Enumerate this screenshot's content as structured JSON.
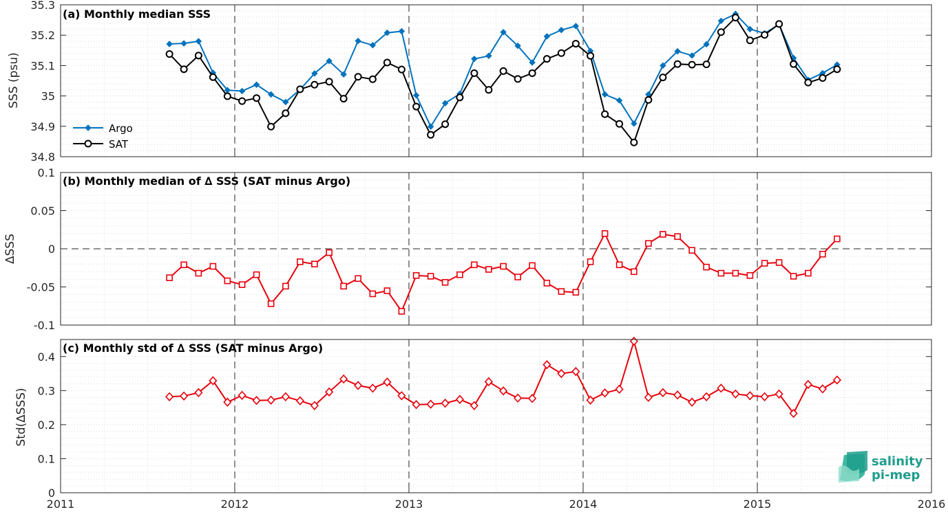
{
  "x_ticks": [
    "2011",
    "2012",
    "2013",
    "2014",
    "2015",
    "2016"
  ],
  "logo": {
    "line1": "salinity",
    "line2": "pi-mep"
  },
  "colors": {
    "argo": "#0072BD",
    "sat": "#000000",
    "delta": "#E8000B",
    "grid": "#d9d9d9"
  },
  "chart_data": [
    {
      "type": "line",
      "title": "(a) Monthly median SSS",
      "ylabel": "SSS (psu)",
      "xlim": [
        2011,
        2016
      ],
      "ylim": [
        34.8,
        35.3
      ],
      "yticks": [
        34.8,
        34.9,
        35,
        35.1,
        35.2,
        35.3
      ],
      "ytick_labels": [
        "34.8",
        "34.9",
        "35",
        "35.1",
        "35.2",
        "35.3"
      ],
      "legend": "left",
      "x": [
        2011.625,
        2011.708,
        2011.792,
        2011.875,
        2011.958,
        2012.042,
        2012.125,
        2012.208,
        2012.292,
        2012.375,
        2012.458,
        2012.542,
        2012.625,
        2012.708,
        2012.792,
        2012.875,
        2012.958,
        2013.042,
        2013.125,
        2013.208,
        2013.292,
        2013.375,
        2013.458,
        2013.542,
        2013.625,
        2013.708,
        2013.792,
        2013.875,
        2013.958,
        2014.042,
        2014.125,
        2014.208,
        2014.292,
        2014.375,
        2014.458,
        2014.542,
        2014.625,
        2014.708,
        2014.792,
        2014.875,
        2014.958,
        2015.042,
        2015.125,
        2015.208,
        2015.292,
        2015.375,
        2015.458
      ],
      "series": [
        {
          "name": "Argo",
          "color": "#0072BD",
          "marker": "diamond-filled",
          "values": [
            35.171,
            35.173,
            35.18,
            35.076,
            35.019,
            35.016,
            35.037,
            35.005,
            34.98,
            35.021,
            35.074,
            35.115,
            35.071,
            35.181,
            35.167,
            35.208,
            35.213,
            35.002,
            34.899,
            34.976,
            35.007,
            35.122,
            35.132,
            35.21,
            35.165,
            35.11,
            35.196,
            35.217,
            35.23,
            35.148,
            35.005,
            34.985,
            34.909,
            35.005,
            35.1,
            35.147,
            35.133,
            35.17,
            35.247,
            35.27,
            35.22,
            35.206,
            35.235,
            35.125,
            35.053,
            35.075,
            35.103
          ]
        },
        {
          "name": "SAT",
          "color": "#000000",
          "marker": "circle-open",
          "values": [
            35.138,
            35.088,
            35.133,
            35.062,
            34.999,
            34.983,
            34.993,
            34.899,
            34.943,
            35.022,
            35.037,
            35.047,
            34.991,
            35.063,
            35.055,
            35.11,
            35.087,
            34.965,
            34.872,
            34.907,
            34.995,
            35.075,
            35.02,
            35.082,
            35.056,
            35.075,
            35.122,
            35.141,
            35.172,
            35.132,
            34.94,
            34.908,
            34.847,
            34.987,
            35.061,
            35.105,
            35.103,
            35.104,
            35.21,
            35.258,
            35.183,
            35.201,
            35.237,
            35.105,
            35.044,
            35.059,
            35.088
          ]
        }
      ]
    },
    {
      "type": "line",
      "title": "(b) Monthly median of ∆ SSS (SAT minus Argo)",
      "ylabel": "∆SSS",
      "xlim": [
        2011,
        2016
      ],
      "ylim": [
        -0.1,
        0.1
      ],
      "yticks": [
        -0.1,
        -0.05,
        0,
        0.05,
        0.1
      ],
      "ytick_labels": [
        "-0.1",
        "-0.05",
        "0",
        "0.05",
        "0.1"
      ],
      "zero_line": true,
      "x": [
        2011.625,
        2011.708,
        2011.792,
        2011.875,
        2011.958,
        2012.042,
        2012.125,
        2012.208,
        2012.292,
        2012.375,
        2012.458,
        2012.542,
        2012.625,
        2012.708,
        2012.792,
        2012.875,
        2012.958,
        2013.042,
        2013.125,
        2013.208,
        2013.292,
        2013.375,
        2013.458,
        2013.542,
        2013.625,
        2013.708,
        2013.792,
        2013.875,
        2013.958,
        2014.042,
        2014.125,
        2014.208,
        2014.292,
        2014.375,
        2014.458,
        2014.542,
        2014.625,
        2014.708,
        2014.792,
        2014.875,
        2014.958,
        2015.042,
        2015.125,
        2015.208,
        2015.292,
        2015.375,
        2015.458
      ],
      "series": [
        {
          "name": "",
          "color": "#E8000B",
          "marker": "square-open",
          "values": [
            -0.038,
            -0.021,
            -0.032,
            -0.023,
            -0.042,
            -0.047,
            -0.034,
            -0.072,
            -0.049,
            -0.017,
            -0.02,
            -0.005,
            -0.049,
            -0.039,
            -0.059,
            -0.055,
            -0.082,
            -0.035,
            -0.036,
            -0.044,
            -0.034,
            -0.021,
            -0.027,
            -0.023,
            -0.037,
            -0.022,
            -0.045,
            -0.056,
            -0.057,
            -0.017,
            0.02,
            -0.021,
            -0.03,
            0.007,
            0.019,
            0.016,
            -0.002,
            -0.024,
            -0.032,
            -0.032,
            -0.035,
            -0.019,
            -0.018,
            -0.036,
            -0.032,
            -0.007,
            0.013
          ]
        }
      ]
    },
    {
      "type": "line",
      "title": "(c) Monthly std of ∆ SSS (SAT minus Argo)",
      "ylabel": "Std(∆SSS)",
      "xlim": [
        2011,
        2016
      ],
      "ylim": [
        0,
        0.45
      ],
      "yticks": [
        0,
        0.1,
        0.2,
        0.3,
        0.4
      ],
      "ytick_labels": [
        "0",
        "0.1",
        "0.2",
        "0.3",
        "0.4"
      ],
      "x": [
        2011.625,
        2011.708,
        2011.792,
        2011.875,
        2011.958,
        2012.042,
        2012.125,
        2012.208,
        2012.292,
        2012.375,
        2012.458,
        2012.542,
        2012.625,
        2012.708,
        2012.792,
        2012.875,
        2012.958,
        2013.042,
        2013.125,
        2013.208,
        2013.292,
        2013.375,
        2013.458,
        2013.542,
        2013.625,
        2013.708,
        2013.792,
        2013.875,
        2013.958,
        2014.042,
        2014.125,
        2014.208,
        2014.292,
        2014.375,
        2014.458,
        2014.542,
        2014.625,
        2014.708,
        2014.792,
        2014.875,
        2014.958,
        2015.042,
        2015.125,
        2015.208,
        2015.292,
        2015.375,
        2015.458
      ],
      "series": [
        {
          "name": "",
          "color": "#E8000B",
          "marker": "diamond-open",
          "values": [
            0.282,
            0.284,
            0.294,
            0.329,
            0.266,
            0.286,
            0.271,
            0.272,
            0.282,
            0.27,
            0.256,
            0.296,
            0.334,
            0.315,
            0.307,
            0.325,
            0.285,
            0.259,
            0.26,
            0.263,
            0.274,
            0.256,
            0.326,
            0.299,
            0.278,
            0.277,
            0.376,
            0.35,
            0.356,
            0.272,
            0.293,
            0.304,
            0.445,
            0.28,
            0.294,
            0.287,
            0.266,
            0.282,
            0.307,
            0.29,
            0.285,
            0.282,
            0.29,
            0.233,
            0.318,
            0.305,
            0.331
          ]
        }
      ]
    }
  ]
}
